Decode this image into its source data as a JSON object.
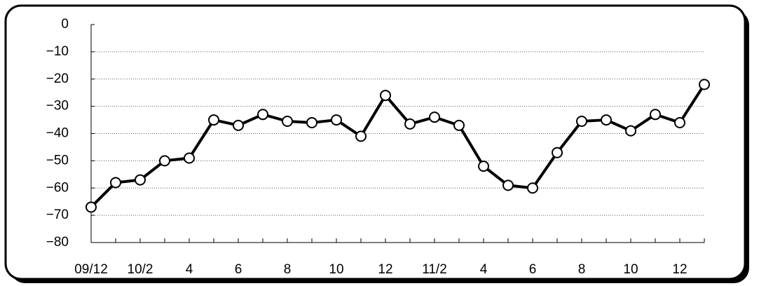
{
  "chart_data": {
    "type": "line",
    "categories": [
      "09/12",
      null,
      "10/2",
      null,
      "4",
      null,
      "6",
      null,
      "8",
      null,
      "10",
      null,
      "12",
      null,
      "11/2",
      null,
      "4",
      null,
      "6",
      null,
      "8",
      null,
      "10",
      null,
      "12",
      null
    ],
    "series": [
      {
        "color": "#000000",
        "values": [
          -67,
          -58,
          -57,
          -50,
          -49,
          -35,
          -37,
          -33,
          -35.5,
          -36,
          -35,
          -41,
          -26,
          -36.5,
          -34,
          -37,
          -52,
          -59,
          -60,
          -47,
          -35.5,
          -35,
          -39,
          -33,
          -36,
          -22
        ]
      }
    ],
    "ylim": [
      -80,
      0
    ],
    "yticks": [
      {
        "value": -80,
        "label": "−80"
      },
      {
        "value": -70,
        "label": "−70"
      },
      {
        "value": -60,
        "label": "−60"
      },
      {
        "value": -50,
        "label": "−50"
      },
      {
        "value": -40,
        "label": "−40"
      },
      {
        "value": -30,
        "label": "−30"
      },
      {
        "value": -20,
        "label": "−20"
      },
      {
        "value": -10,
        "label": "−10"
      },
      0
    ],
    "grid": true
  }
}
